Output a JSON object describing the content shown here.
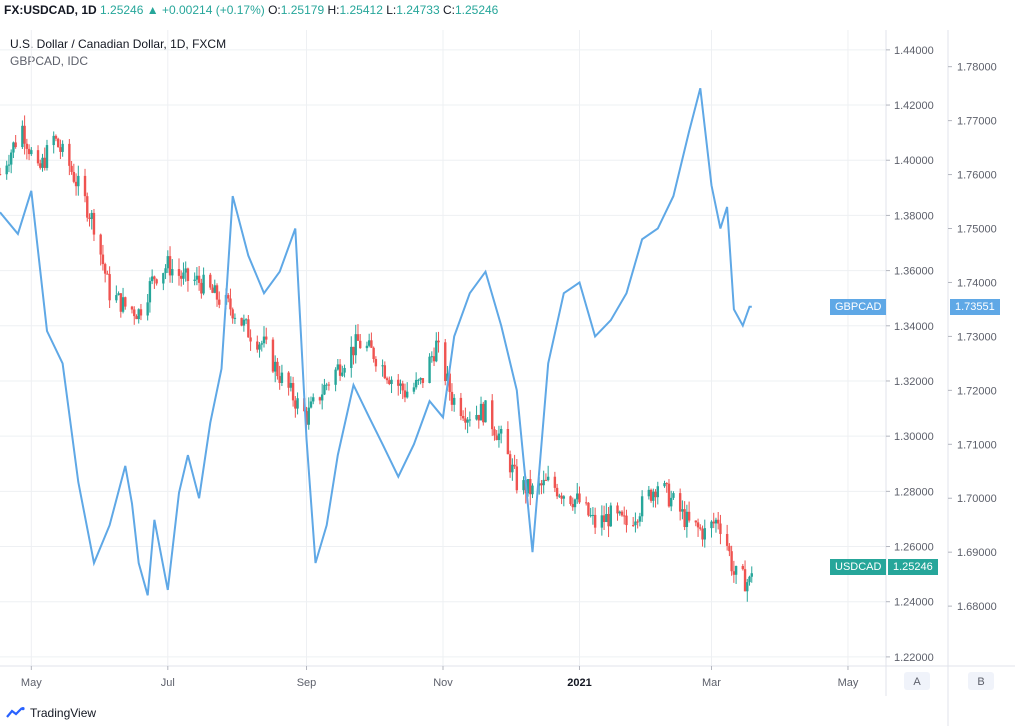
{
  "header": {
    "symbol": "FX:USDCAD, 1D",
    "last": "1.25246",
    "change": "+0.00214 (+0.17%)",
    "o_label": "O:",
    "o": "1.25179",
    "h_label": "H:",
    "h": "1.25412",
    "l_label": "L:",
    "l": "1.24733",
    "c_label": "C:",
    "c": "1.25246"
  },
  "pane": {
    "title": "U.S. Dollar / Canadian Dollar, 1D, FXCM",
    "compare": "GBPCAD, IDC"
  },
  "scales": {
    "left_button": "A",
    "right_button": "B"
  },
  "brand": "TradingView",
  "colors": {
    "up": "#26a69a",
    "down": "#ef5350",
    "compare": "#5fa8e6",
    "grid": "#eef0f3",
    "axis_text": "#5d606b"
  },
  "chart_data": {
    "type": "line",
    "x_axis": {
      "ticks": [
        {
          "date": "2020-05-01",
          "label": "May",
          "bold": false
        },
        {
          "date": "2020-07-01",
          "label": "Jul",
          "bold": false
        },
        {
          "date": "2020-09-01",
          "label": "Sep",
          "bold": false
        },
        {
          "date": "2020-11-01",
          "label": "Nov",
          "bold": false
        },
        {
          "date": "2021-01-01",
          "label": "2021",
          "bold": true
        },
        {
          "date": "2021-03-01",
          "label": "Mar",
          "bold": false
        },
        {
          "date": "2021-05-01",
          "label": "May",
          "bold": false
        }
      ],
      "range": [
        "2020-04-17",
        "2021-05-18"
      ]
    },
    "y_axis_usdcad": {
      "range": [
        1.2167,
        1.4472
      ],
      "ticks": [
        "1.22000",
        "1.24000",
        "1.26000",
        "1.28000",
        "1.30000",
        "1.32000",
        "1.34000",
        "1.36000",
        "1.38000",
        "1.40000",
        "1.42000",
        "1.44000"
      ],
      "last_label": "USDCAD",
      "last_value": "1.25246",
      "last": 1.25246
    },
    "y_axis_gbpcad": {
      "range": [
        1.6689,
        1.7868
      ],
      "ticks": [
        "1.68000",
        "1.69000",
        "1.70000",
        "1.71000",
        "1.72000",
        "1.73000",
        "1.74000",
        "1.75000",
        "1.76000",
        "1.77000",
        "1.78000"
      ],
      "last_label": "GBPCAD",
      "last_value": "1.73551",
      "last": 1.73551
    },
    "usdcad_close": [
      [
        "2020-04-17",
        1.395
      ],
      [
        "2020-04-27",
        1.412
      ],
      [
        "2020-05-04",
        1.395
      ],
      [
        "2020-05-11",
        1.408
      ],
      [
        "2020-05-18",
        1.398
      ],
      [
        "2020-05-25",
        1.385
      ],
      [
        "2020-05-29",
        1.377
      ],
      [
        "2020-06-05",
        1.352
      ],
      [
        "2020-06-12",
        1.347
      ],
      [
        "2020-06-18",
        1.345
      ],
      [
        "2020-06-25",
        1.358
      ],
      [
        "2020-07-01",
        1.362
      ],
      [
        "2020-07-08",
        1.357
      ],
      [
        "2020-07-15",
        1.356
      ],
      [
        "2020-07-22",
        1.351
      ],
      [
        "2020-07-30",
        1.346
      ],
      [
        "2020-08-06",
        1.338
      ],
      [
        "2020-08-13",
        1.333
      ],
      [
        "2020-08-20",
        1.322
      ],
      [
        "2020-08-27",
        1.313
      ],
      [
        "2020-09-01",
        1.307
      ],
      [
        "2020-09-10",
        1.319
      ],
      [
        "2020-09-17",
        1.327
      ],
      [
        "2020-09-24",
        1.334
      ],
      [
        "2020-10-01",
        1.33
      ],
      [
        "2020-10-08",
        1.322
      ],
      [
        "2020-10-15",
        1.316
      ],
      [
        "2020-10-22",
        1.319
      ],
      [
        "2020-10-29",
        1.333
      ],
      [
        "2020-11-05",
        1.314
      ],
      [
        "2020-11-12",
        1.308
      ],
      [
        "2020-11-20",
        1.309
      ],
      [
        "2020-11-27",
        1.299
      ],
      [
        "2020-12-04",
        1.283
      ],
      [
        "2020-12-11",
        1.28
      ],
      [
        "2020-12-18",
        1.283
      ],
      [
        "2021-01-01",
        1.276
      ],
      [
        "2021-01-08",
        1.268
      ],
      [
        "2021-01-15",
        1.271
      ],
      [
        "2021-01-22",
        1.268
      ],
      [
        "2021-01-29",
        1.275
      ],
      [
        "2021-02-05",
        1.283
      ],
      [
        "2021-02-12",
        1.276
      ],
      [
        "2021-02-19",
        1.268
      ],
      [
        "2021-02-26",
        1.265
      ],
      [
        "2021-03-04",
        1.27
      ],
      [
        "2021-03-08",
        1.261
      ],
      [
        "2021-03-11",
        1.25
      ],
      [
        "2021-03-15",
        1.248
      ],
      [
        "2021-03-18",
        1.247
      ],
      [
        "2021-03-19",
        1.252
      ]
    ],
    "gbpcad": [
      [
        "2020-04-17",
        1.753
      ],
      [
        "2020-04-25",
        1.749
      ],
      [
        "2020-05-01",
        1.757
      ],
      [
        "2020-05-08",
        1.731
      ],
      [
        "2020-05-15",
        1.725
      ],
      [
        "2020-05-22",
        1.703
      ],
      [
        "2020-05-29",
        1.688
      ],
      [
        "2020-06-05",
        1.695
      ],
      [
        "2020-06-12",
        1.706
      ],
      [
        "2020-06-15",
        1.699
      ],
      [
        "2020-06-18",
        1.688
      ],
      [
        "2020-06-22",
        1.682
      ],
      [
        "2020-06-25",
        1.696
      ],
      [
        "2020-07-01",
        1.683
      ],
      [
        "2020-07-06",
        1.701
      ],
      [
        "2020-07-10",
        1.708
      ],
      [
        "2020-07-15",
        1.7
      ],
      [
        "2020-07-20",
        1.714
      ],
      [
        "2020-07-25",
        1.724
      ],
      [
        "2020-07-30",
        1.756
      ],
      [
        "2020-08-06",
        1.745
      ],
      [
        "2020-08-13",
        1.738
      ],
      [
        "2020-08-20",
        1.742
      ],
      [
        "2020-08-27",
        1.75
      ],
      [
        "2020-09-01",
        1.711
      ],
      [
        "2020-09-05",
        1.688
      ],
      [
        "2020-09-10",
        1.695
      ],
      [
        "2020-09-15",
        1.708
      ],
      [
        "2020-09-22",
        1.721
      ],
      [
        "2020-09-29",
        1.715
      ],
      [
        "2020-10-05",
        1.71
      ],
      [
        "2020-10-12",
        1.704
      ],
      [
        "2020-10-19",
        1.71
      ],
      [
        "2020-10-26",
        1.718
      ],
      [
        "2020-11-01",
        1.715
      ],
      [
        "2020-11-06",
        1.73
      ],
      [
        "2020-11-13",
        1.738
      ],
      [
        "2020-11-20",
        1.742
      ],
      [
        "2020-11-27",
        1.732
      ],
      [
        "2020-12-04",
        1.72
      ],
      [
        "2020-12-11",
        1.69
      ],
      [
        "2020-12-18",
        1.725
      ],
      [
        "2020-12-25",
        1.738
      ],
      [
        "2021-01-01",
        1.74
      ],
      [
        "2021-01-08",
        1.73
      ],
      [
        "2021-01-15",
        1.733
      ],
      [
        "2021-01-22",
        1.738
      ],
      [
        "2021-01-29",
        1.748
      ],
      [
        "2021-02-05",
        1.75
      ],
      [
        "2021-02-12",
        1.756
      ],
      [
        "2021-02-19",
        1.768
      ],
      [
        "2021-02-24",
        1.776
      ],
      [
        "2021-03-01",
        1.758
      ],
      [
        "2021-03-05",
        1.75
      ],
      [
        "2021-03-08",
        1.754
      ],
      [
        "2021-03-11",
        1.735
      ],
      [
        "2021-03-15",
        1.732
      ],
      [
        "2021-03-18",
        1.7355
      ],
      [
        "2021-03-19",
        1.7355
      ]
    ]
  }
}
